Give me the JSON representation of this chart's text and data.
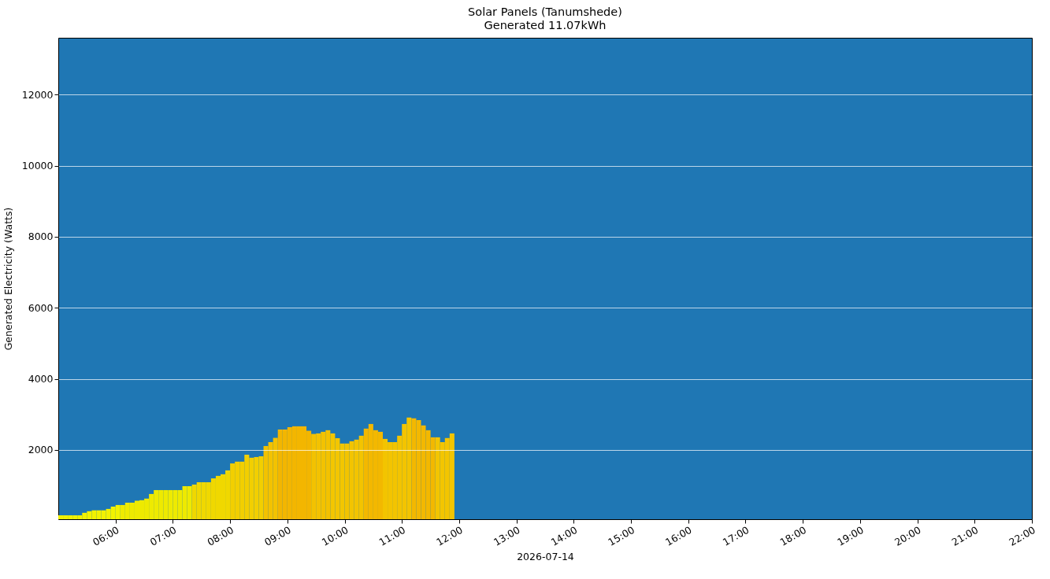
{
  "chart_data": {
    "type": "bar",
    "title": "Solar Panels (Tanumshede)",
    "subtitle": "Generated 11.07kWh",
    "xlabel": "2026-07-14",
    "ylabel": "Generated Electricity (Watts)",
    "x": [
      "2026-07-14T05:00",
      "2026-07-14T05:05",
      "2026-07-14T05:10",
      "2026-07-14T05:15",
      "2026-07-14T05:20",
      "2026-07-14T05:25",
      "2026-07-14T05:30",
      "2026-07-14T05:35",
      "2026-07-14T05:40",
      "2026-07-14T05:45",
      "2026-07-14T05:50",
      "2026-07-14T05:55",
      "2026-07-14T06:00",
      "2026-07-14T06:05",
      "2026-07-14T06:10",
      "2026-07-14T06:15",
      "2026-07-14T06:20",
      "2026-07-14T06:25",
      "2026-07-14T06:30",
      "2026-07-14T06:35",
      "2026-07-14T06:40",
      "2026-07-14T06:45",
      "2026-07-14T06:50",
      "2026-07-14T06:55",
      "2026-07-14T07:00",
      "2026-07-14T07:05",
      "2026-07-14T07:10",
      "2026-07-14T07:15",
      "2026-07-14T07:20",
      "2026-07-14T07:25",
      "2026-07-14T07:30",
      "2026-07-14T07:35",
      "2026-07-14T07:40",
      "2026-07-14T07:45",
      "2026-07-14T07:50",
      "2026-07-14T07:55",
      "2026-07-14T08:00",
      "2026-07-14T08:05",
      "2026-07-14T08:10",
      "2026-07-14T08:15",
      "2026-07-14T08:20",
      "2026-07-14T08:25",
      "2026-07-14T08:30",
      "2026-07-14T08:35",
      "2026-07-14T08:40",
      "2026-07-14T08:45",
      "2026-07-14T08:50",
      "2026-07-14T08:55",
      "2026-07-14T09:00",
      "2026-07-14T09:05",
      "2026-07-14T09:10",
      "2026-07-14T09:15",
      "2026-07-14T09:20",
      "2026-07-14T09:25",
      "2026-07-14T09:30",
      "2026-07-14T09:35",
      "2026-07-14T09:40",
      "2026-07-14T09:45",
      "2026-07-14T09:50",
      "2026-07-14T09:55",
      "2026-07-14T10:00",
      "2026-07-14T10:05",
      "2026-07-14T10:10",
      "2026-07-14T10:15",
      "2026-07-14T10:20",
      "2026-07-14T10:25",
      "2026-07-14T10:30",
      "2026-07-14T10:35",
      "2026-07-14T10:40",
      "2026-07-14T10:45",
      "2026-07-14T10:50",
      "2026-07-14T10:55",
      "2026-07-14T11:00",
      "2026-07-14T11:05",
      "2026-07-14T11:10",
      "2026-07-14T11:15",
      "2026-07-14T11:20",
      "2026-07-14T11:25",
      "2026-07-14T11:30",
      "2026-07-14T11:35",
      "2026-07-14T11:40",
      "2026-07-14T11:45",
      "2026-07-14T11:50"
    ],
    "values": [
      160,
      160,
      160,
      160,
      160,
      230,
      275,
      300,
      300,
      300,
      340,
      405,
      450,
      450,
      515,
      515,
      570,
      585,
      630,
      760,
      870,
      870,
      870,
      870,
      870,
      870,
      980,
      980,
      1025,
      1090,
      1090,
      1090,
      1200,
      1270,
      1315,
      1425,
      1620,
      1670,
      1670,
      1865,
      1780,
      1800,
      1820,
      2110,
      2220,
      2340,
      2575,
      2575,
      2640,
      2665,
      2665,
      2665,
      2540,
      2450,
      2465,
      2510,
      2555,
      2465,
      2330,
      2180,
      2180,
      2245,
      2290,
      2400,
      2600,
      2730,
      2555,
      2510,
      2310,
      2220,
      2220,
      2400,
      2730,
      2910,
      2890,
      2840,
      2690,
      2555,
      2355,
      2355,
      2220,
      2335,
      2465
    ],
    "colors": [
      "#f2f200",
      "#f2f200",
      "#f2f200",
      "#f2f200",
      "#f2f200",
      "#f2f200",
      "#f2f200",
      "#f2f200",
      "#f2f200",
      "#f2f200",
      "#f2f200",
      "#f2f200",
      "#f2f200",
      "#eeea00",
      "#eeea00",
      "#eeea00",
      "#eeea00",
      "#eeea00",
      "#eeea00",
      "#eeea00",
      "#eeea00",
      "#eeea00",
      "#eeea00",
      "#eeea00",
      "#eeea00",
      "#eeea00",
      "#eeea00",
      "#eeea00",
      "#f0d800",
      "#f0d800",
      "#f0d800",
      "#f0d800",
      "#f0d800",
      "#f0d800",
      "#f0d800",
      "#f0d800",
      "#f2cf00",
      "#f2cf00",
      "#f2cf00",
      "#f2cf00",
      "#f2cf00",
      "#f2cf00",
      "#f2cf00",
      "#f3c200",
      "#f3c200",
      "#f3c200",
      "#f3b600",
      "#f3b600",
      "#f3b600",
      "#f3b600",
      "#f3b600",
      "#f3b600",
      "#f3b600",
      "#f3c200",
      "#f3c200",
      "#f3c200",
      "#f3c200",
      "#f3c600",
      "#f3c600",
      "#f3c600",
      "#f3c400",
      "#f3c400",
      "#f3c400",
      "#f3c400",
      "#f3b800",
      "#f3b800",
      "#f3b800",
      "#f3b800",
      "#f3c400",
      "#f3c400",
      "#f3c400",
      "#f3c400",
      "#f3c400",
      "#f3c400",
      "#f3b800",
      "#f3b800",
      "#f3b800",
      "#f3b800",
      "#f3b800",
      "#f3c500",
      "#f3c500",
      "#f3c500",
      "#f3c500"
    ],
    "xlim": [
      "2026-07-14T05:00",
      "2026-07-14T22:00"
    ],
    "xticks": [
      {
        "value": "2026-07-14T06:00",
        "label": "06:00"
      },
      {
        "value": "2026-07-14T07:00",
        "label": "07:00"
      },
      {
        "value": "2026-07-14T08:00",
        "label": "08:00"
      },
      {
        "value": "2026-07-14T09:00",
        "label": "09:00"
      },
      {
        "value": "2026-07-14T10:00",
        "label": "10:00"
      },
      {
        "value": "2026-07-14T11:00",
        "label": "11:00"
      },
      {
        "value": "2026-07-14T12:00",
        "label": "12:00"
      },
      {
        "value": "2026-07-14T13:00",
        "label": "13:00"
      },
      {
        "value": "2026-07-14T14:00",
        "label": "14:00"
      },
      {
        "value": "2026-07-14T15:00",
        "label": "15:00"
      },
      {
        "value": "2026-07-14T16:00",
        "label": "16:00"
      },
      {
        "value": "2026-07-14T17:00",
        "label": "17:00"
      },
      {
        "value": "2026-07-14T18:00",
        "label": "18:00"
      },
      {
        "value": "2026-07-14T19:00",
        "label": "19:00"
      },
      {
        "value": "2026-07-14T20:00",
        "label": "20:00"
      },
      {
        "value": "2026-07-14T21:00",
        "label": "21:00"
      },
      {
        "value": "2026-07-14T22:00",
        "label": "22:00"
      }
    ],
    "ylim": [
      50,
      13600
    ],
    "yticks": [
      2000,
      4000,
      6000,
      8000,
      10000,
      12000
    ],
    "grid": "y"
  }
}
